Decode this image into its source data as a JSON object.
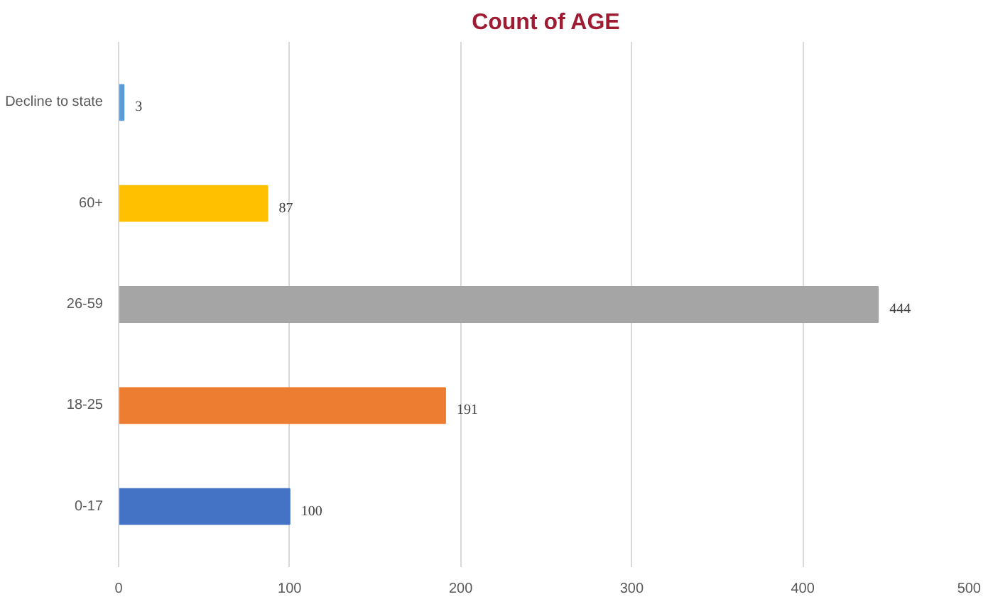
{
  "chart_data": {
    "type": "bar",
    "orientation": "horizontal",
    "title": "Count of AGE",
    "categories": [
      "Decline to state",
      "60+",
      "26-59",
      "18-25",
      "0-17"
    ],
    "values": [
      3,
      87,
      444,
      191,
      100
    ],
    "colors": [
      "#5b9bd5",
      "#ffc000",
      "#a5a5a5",
      "#ed7d31",
      "#4472c4"
    ],
    "xlim": [
      0,
      500
    ],
    "xticks": [
      0,
      100,
      200,
      300,
      400,
      500
    ],
    "grid": "x",
    "data_labels": true
  }
}
